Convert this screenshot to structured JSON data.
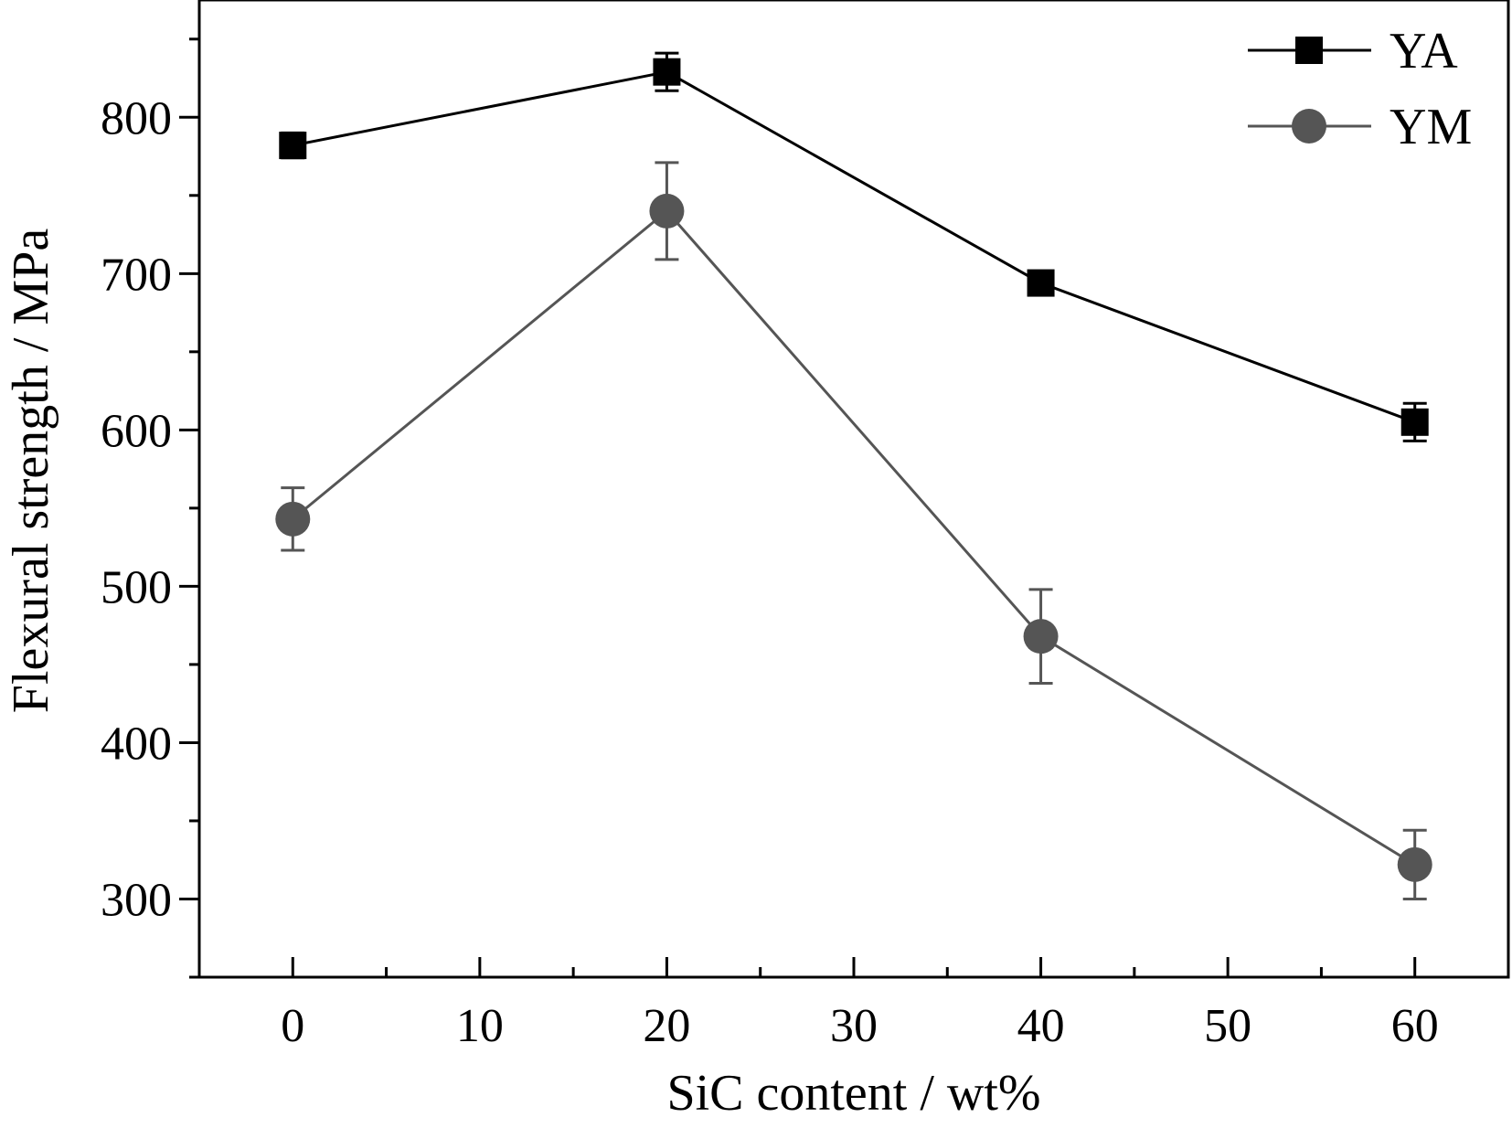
{
  "chart_data": {
    "type": "line",
    "title": "",
    "xlabel": "SiC content / wt%",
    "ylabel": "Flexural strength / MPa",
    "xlim": [
      -5,
      65
    ],
    "ylim": [
      250,
      875
    ],
    "x_ticks": [
      "0",
      "10",
      "20",
      "30",
      "40",
      "50",
      "60"
    ],
    "y_ticks": [
      "300",
      "400",
      "500",
      "600",
      "700",
      "800"
    ],
    "legend_position": "top-right",
    "series": [
      {
        "name": "YA",
        "marker": "square",
        "color": "#000000",
        "x": [
          0,
          20,
          40,
          60
        ],
        "y": [
          782,
          829,
          694,
          605
        ],
        "error": [
          8,
          12,
          6,
          12
        ]
      },
      {
        "name": "YM",
        "marker": "circle",
        "color": "#555555",
        "x": [
          0,
          20,
          40,
          60
        ],
        "y": [
          543,
          740,
          468,
          322
        ],
        "error": [
          20,
          31,
          30,
          22
        ]
      }
    ]
  }
}
